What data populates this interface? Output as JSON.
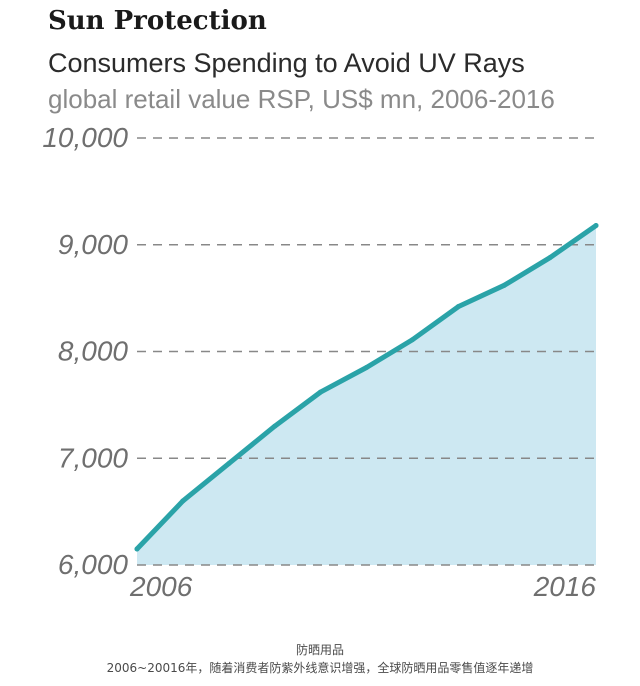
{
  "chart_data": {
    "type": "area",
    "heading": "Sun Protection",
    "title": "Consumers Spending to Avoid UV Rays",
    "subtitle": "global retail value RSP, US$ mn, 2006-2016",
    "x": [
      2006,
      2007,
      2008,
      2009,
      2010,
      2011,
      2012,
      2013,
      2014,
      2015,
      2016
    ],
    "values": [
      6150,
      6600,
      6950,
      7300,
      7620,
      7850,
      8110,
      8420,
      8620,
      8880,
      9180
    ],
    "x_tick_labels": [
      "2006",
      "2016"
    ],
    "y_tick_labels": [
      "6,000",
      "7,000",
      "8,000",
      "9,000",
      "10,000"
    ],
    "y_ticks": [
      6000,
      7000,
      8000,
      9000,
      10000
    ],
    "ylim": [
      6000,
      10000
    ],
    "xlim": [
      2006,
      2016
    ],
    "grid": "horizontal dashed",
    "colors": {
      "line": "#2aa3a8",
      "fill": "#cde8f2",
      "grid": "#888888",
      "tick": "#6f6f6f"
    }
  },
  "caption": {
    "line1": "防晒用品",
    "line2": "2006~20016年，随着消费者防紫外线意识增强，全球防晒用品零售值逐年递增"
  }
}
